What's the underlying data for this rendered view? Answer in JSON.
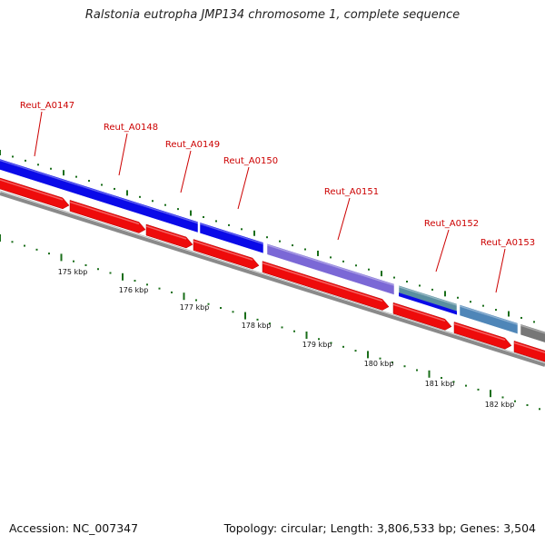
{
  "title": "Ralstonia eutropha JMP134 chromosome 1, complete sequence",
  "footer": {
    "accession": "Accession: NC_007347",
    "summary": "Topology: circular; Length: 3,806,533 bp; Genes: 3,504"
  },
  "colors": {
    "label": "#cc0000",
    "gene_blue": "#0a0ae8",
    "gene_purple": "#7b68d6",
    "gene_teal": "#5a8fa0",
    "gene_steel": "#4f86b8",
    "gene_gray": "#777777",
    "arrow_red": "#ee0b0b",
    "backbone": "#8a8a8a",
    "tick": "#1a6e1a"
  },
  "gene_labels": [
    {
      "name": "Reut_A0147"
    },
    {
      "name": "Reut_A0148"
    },
    {
      "name": "Reut_A0149"
    },
    {
      "name": "Reut_A0150"
    },
    {
      "name": "Reut_A0151"
    },
    {
      "name": "Reut_A0152"
    },
    {
      "name": "Reut_A0153"
    }
  ],
  "kbp_labels": [
    "175 kbp",
    "176 kbp",
    "177 kbp",
    "178 kbp",
    "179 kbp",
    "180 kbp",
    "181 kbp",
    "182 kbp"
  ]
}
